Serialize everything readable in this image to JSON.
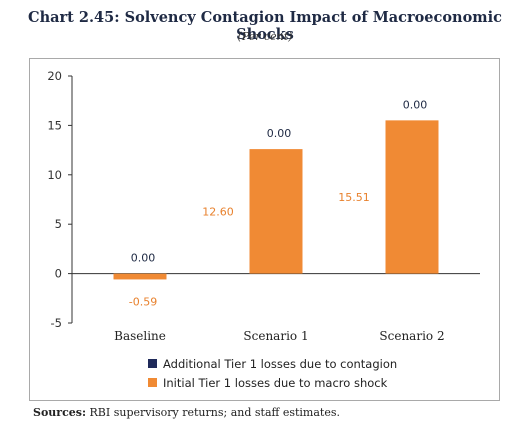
{
  "title": "Chart 2.45: Solvency Contagion Impact of Macroeconomic Shocks",
  "subtitle": "(Per cent)",
  "source_label": "Sources:",
  "source_text": " RBI supervisory returns; and staff estimates.",
  "colors": {
    "initial": "#F08A34",
    "additional": "#1F2A5A"
  },
  "chart_data": {
    "type": "bar",
    "stacked": true,
    "categories": [
      "Baseline",
      "Scenario 1",
      "Scenario 2"
    ],
    "ylim": [
      -5,
      20
    ],
    "yticks": [
      -5,
      0,
      5,
      10,
      15,
      20
    ],
    "legend_position": "bottom",
    "grid": false,
    "series": [
      {
        "name": "Additional Tier 1 losses due to contagion",
        "values": [
          0.0,
          0.0,
          0.0
        ],
        "labels": [
          "0.00",
          "0.00",
          "0.00"
        ]
      },
      {
        "name": "Initial Tier 1 losses due to macro shock",
        "values": [
          -0.59,
          12.6,
          15.51
        ],
        "labels": [
          "-0.59",
          "12.60",
          "15.51"
        ]
      }
    ]
  }
}
